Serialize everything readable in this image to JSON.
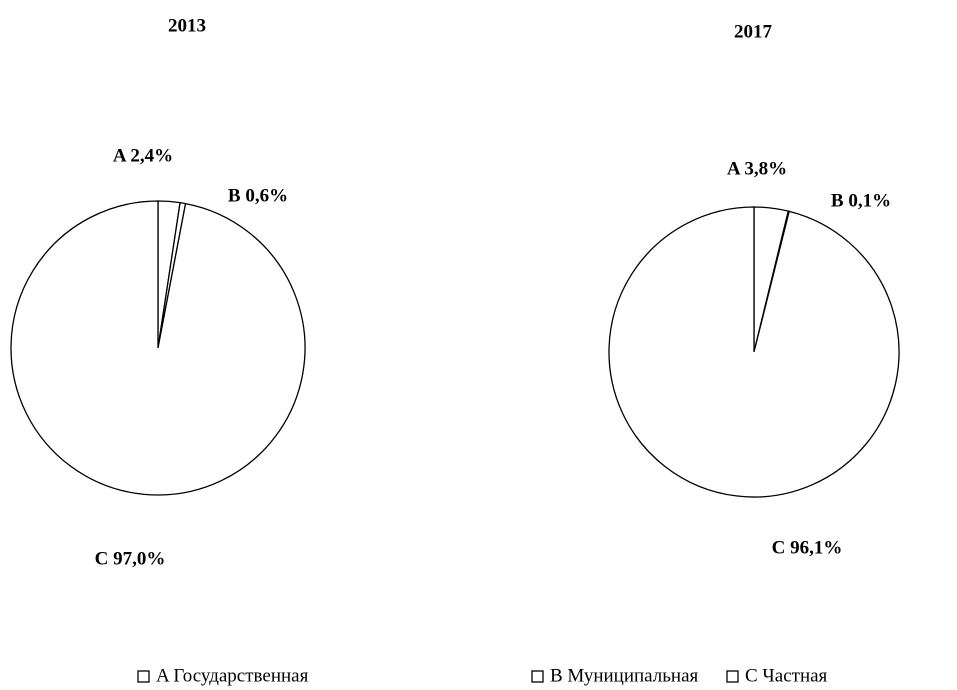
{
  "chart_data": [
    {
      "type": "pie",
      "title": "2013",
      "values": [
        2.4,
        0.6,
        97.0
      ],
      "value_labels": [
        "A 2,4%",
        "B 0,6%",
        "C 97,0%"
      ],
      "color": "#ffffff"
    },
    {
      "type": "pie",
      "title": "2017",
      "values": [
        3.8,
        0.1,
        96.1
      ],
      "value_labels": [
        "A 3,8%",
        "B 0,1%",
        "C 96,1%"
      ],
      "color": "#ffffff"
    }
  ],
  "legend": [
    "A Государственная",
    "B Муниципальная",
    "C Частная"
  ]
}
